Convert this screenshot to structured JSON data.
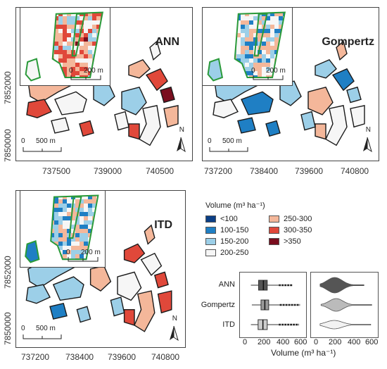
{
  "colors": {
    "lt100": "#0b3f86",
    "c100_150": "#1f7fc4",
    "c150_200": "#9ccfe8",
    "c200_250": "#f6f6f6",
    "c250_300": "#f4b79a",
    "c300_350": "#e0483a",
    "gt350": "#7a0d1e",
    "stand_outline": "#1a1a1a",
    "inset_outline": "#2a9a3a"
  },
  "panels": {
    "ann": {
      "title": "ANN",
      "x_ticks": [
        "737500",
        "739000",
        "740500"
      ],
      "y_ticks": [
        "7852000",
        "7850000"
      ],
      "scale_main": [
        "0",
        "500 m"
      ],
      "scale_inset": [
        "0",
        "200 m"
      ],
      "north": "N"
    },
    "gompertz": {
      "title": "Gompertz",
      "x_ticks": [
        "737200",
        "738400",
        "739600",
        "740800"
      ],
      "scale_main": [
        "0",
        "500 m"
      ],
      "scale_inset": [
        "0",
        "200 m"
      ],
      "north": "N"
    },
    "itd": {
      "title": "ITD",
      "x_ticks": [
        "737200",
        "738400",
        "739600",
        "740800"
      ],
      "y_ticks": [
        "7852000",
        "7850000"
      ],
      "scale_main": [
        "0",
        "500 m"
      ],
      "scale_inset": [
        "0",
        "200 m"
      ],
      "north": "N"
    }
  },
  "legend": {
    "title": "Volume (m³ ha⁻¹)",
    "items": [
      {
        "label": "<100",
        "color": "#0b3f86"
      },
      {
        "label": "100-150",
        "color": "#1f7fc4"
      },
      {
        "label": "150-200",
        "color": "#9ccfe8"
      },
      {
        "label": "200-250",
        "color": "#f6f6f6"
      },
      {
        "label": "250-300",
        "color": "#f4b79a"
      },
      {
        "label": "300-350",
        "color": "#e0483a"
      },
      {
        "label": ">350",
        "color": "#7a0d1e"
      }
    ]
  },
  "distribution": {
    "methods": [
      "ANN",
      "Gompertz",
      "ITD"
    ],
    "x_ticks": [
      "0",
      "200",
      "400",
      "600"
    ],
    "xlabel": "Volume (m³ ha⁻¹)",
    "chart_data": {
      "type": "box+violin",
      "xlim": [
        0,
        600
      ],
      "series": [
        {
          "name": "ANN",
          "q1": 150,
          "median": 200,
          "q3": 240,
          "whisker_low": 70,
          "whisker_high": 360,
          "outlier_max": 500
        },
        {
          "name": "Gompertz",
          "q1": 175,
          "median": 215,
          "q3": 255,
          "whisker_low": 80,
          "whisker_high": 370,
          "outlier_max": 580
        },
        {
          "name": "ITD",
          "q1": 145,
          "median": 195,
          "q3": 240,
          "whisker_low": 70,
          "whisker_high": 360,
          "outlier_max": 570
        }
      ]
    }
  }
}
